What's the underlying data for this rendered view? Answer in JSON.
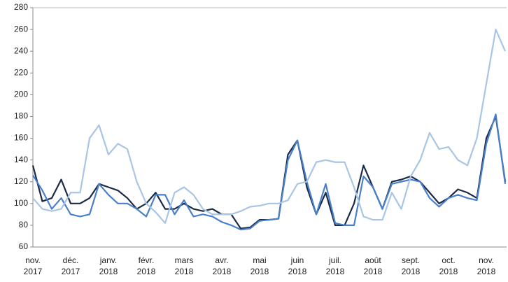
{
  "chart_data": {
    "type": "line",
    "categories": [
      "nov. 2017",
      null,
      null,
      null,
      "déc. 2017",
      null,
      null,
      null,
      "janv. 2018",
      null,
      null,
      null,
      "févr. 2018",
      null,
      null,
      null,
      "mars 2018",
      null,
      null,
      null,
      "avr. 2018",
      null,
      null,
      null,
      "mai 2018",
      null,
      null,
      null,
      "juin 2018",
      null,
      null,
      null,
      "juil. 2018",
      null,
      null,
      null,
      "août 2018",
      null,
      null,
      null,
      "sept. 2018",
      null,
      null,
      null,
      "oct. 2018",
      null,
      null,
      null,
      "nov. 2018",
      null,
      null
    ],
    "series": [
      {
        "color": "#1b2a47",
        "values": [
          135,
          102,
          105,
          122,
          100,
          100,
          105,
          118,
          115,
          112,
          105,
          95,
          100,
          110,
          95,
          95,
          100,
          95,
          93,
          95,
          90,
          90,
          77,
          78,
          85,
          85,
          86,
          145,
          158,
          115,
          90,
          110,
          80,
          80,
          100,
          135,
          115,
          95,
          120,
          122,
          125,
          120,
          110,
          100,
          105,
          113,
          110,
          105,
          160,
          180,
          120
        ]
      },
      {
        "color": "#4a7fcb",
        "values": [
          126,
          112,
          95,
          105,
          90,
          88,
          90,
          118,
          108,
          100,
          100,
          95,
          88,
          108,
          108,
          90,
          103,
          88,
          90,
          88,
          83,
          80,
          76,
          77,
          84,
          85,
          86,
          140,
          158,
          120,
          90,
          118,
          82,
          80,
          80,
          125,
          115,
          95,
          118,
          120,
          122,
          120,
          105,
          97,
          105,
          108,
          105,
          103,
          155,
          182,
          118
        ]
      },
      {
        "color": "#a9c5e6",
        "values": [
          105,
          95,
          93,
          95,
          110,
          110,
          160,
          172,
          145,
          155,
          150,
          120,
          100,
          92,
          82,
          110,
          115,
          108,
          95,
          90,
          90,
          90,
          93,
          97,
          98,
          100,
          100,
          103,
          118,
          120,
          138,
          140,
          138,
          138,
          115,
          88,
          85,
          85,
          110,
          95,
          125,
          140,
          165,
          150,
          152,
          140,
          135,
          160,
          210,
          260,
          240
        ]
      }
    ],
    "ylim": [
      60,
      280
    ],
    "yticks": [
      60,
      80,
      100,
      120,
      140,
      160,
      180,
      200,
      220,
      240,
      260,
      280
    ]
  }
}
